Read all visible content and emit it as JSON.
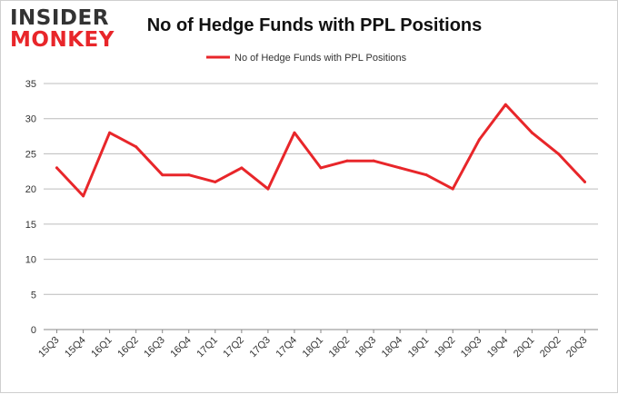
{
  "logo": {
    "line1": "INSIDER",
    "line2": "MONKEY"
  },
  "colors": {
    "series": "#e8262a",
    "grid": "#bcbcbc",
    "axis": "#888888",
    "logo_dark": "#333333",
    "logo_red": "#e8262a"
  },
  "chart_data": {
    "type": "line",
    "title": "No of Hedge Funds with PPL Positions",
    "xlabel": "",
    "ylabel": "",
    "ylim": [
      0,
      35
    ],
    "yticks": [
      0,
      5,
      10,
      15,
      20,
      25,
      30,
      35
    ],
    "grid": "horizontal",
    "legend": "top-center",
    "categories": [
      "15Q3",
      "15Q4",
      "16Q1",
      "16Q2",
      "16Q3",
      "16Q4",
      "17Q1",
      "17Q2",
      "17Q3",
      "17Q4",
      "18Q1",
      "18Q2",
      "18Q3",
      "18Q4",
      "19Q1",
      "19Q2",
      "19Q3",
      "19Q4",
      "20Q1",
      "20Q2",
      "20Q3"
    ],
    "series": [
      {
        "name": "No of Hedge Funds with PPL Positions",
        "values": [
          23,
          19,
          28,
          26,
          22,
          22,
          21,
          23,
          20,
          28,
          23,
          24,
          24,
          23,
          22,
          20,
          27,
          32,
          28,
          25,
          21
        ]
      }
    ]
  }
}
